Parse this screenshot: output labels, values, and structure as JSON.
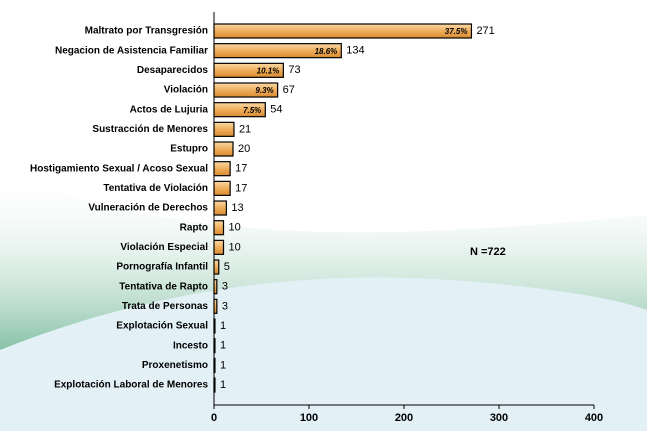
{
  "chart_data": {
    "type": "hbar",
    "categories": [
      "Maltrato por Transgresión",
      "Negacion de Asistencia Familiar",
      "Desaparecidos",
      "Violación",
      "Actos de Lujuria",
      "Sustracción de Menores",
      "Estupro",
      "Hostigamiento Sexual / Acoso Sexual",
      "Tentativa de Violación",
      "Vulneración de Derechos",
      "Rapto",
      "Violación Especial",
      "Pornografía Infantil",
      "Tentativa de Rapto",
      "Trata de Personas",
      "Explotación Sexual",
      "Incesto",
      "Proxenetismo",
      "Explotación Laboral de Menores"
    ],
    "values": [
      271,
      134,
      73,
      67,
      54,
      21,
      20,
      17,
      17,
      13,
      10,
      10,
      5,
      3,
      3,
      1,
      1,
      1,
      1
    ],
    "percent_labels": [
      "37.5%",
      "18.6%",
      "10.1%",
      "9.3%",
      "7.5%"
    ],
    "annotation": "N =722",
    "color": "#eeae5c",
    "xlim": [
      0,
      400
    ],
    "xticks": [
      0,
      100,
      200,
      300,
      400
    ]
  }
}
